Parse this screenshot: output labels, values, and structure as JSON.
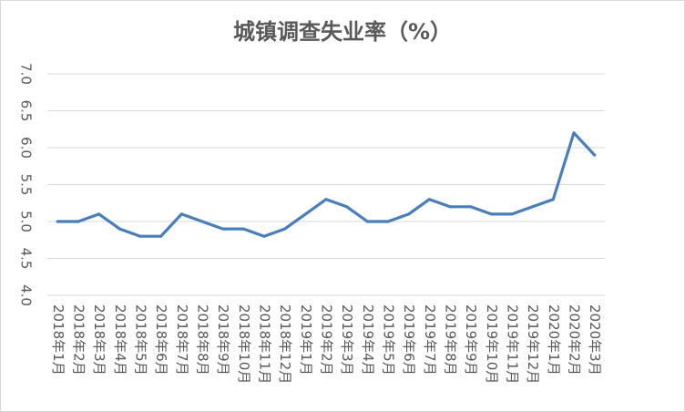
{
  "chart_data": {
    "type": "line",
    "title": "城镇调查失业率（%）",
    "xlabel": "",
    "ylabel": "",
    "ylim": [
      4.0,
      7.0
    ],
    "yticks": [
      "4.0",
      "4.5",
      "5.0",
      "5.5",
      "6.0",
      "6.5",
      "7.0"
    ],
    "grid": true,
    "legend": "none",
    "color": "#4a7ebb",
    "categories": [
      "2018年1月",
      "2018年2月",
      "2018年3月",
      "2018年4月",
      "2018年5月",
      "2018年6月",
      "2018年7月",
      "2018年8月",
      "2018年9月",
      "2018年10月",
      "2018年11月",
      "2018年12月",
      "2019年1月",
      "2019年2月",
      "2019年3月",
      "2019年4月",
      "2019年5月",
      "2019年6月",
      "2019年7月",
      "2019年8月",
      "2019年9月",
      "2019年10月",
      "2019年11月",
      "2019年12月",
      "2020年1月",
      "2020年2月",
      "2020年3月"
    ],
    "values": [
      5.0,
      5.0,
      5.1,
      4.9,
      4.8,
      4.8,
      5.1,
      5.0,
      4.9,
      4.9,
      4.8,
      4.9,
      5.1,
      5.3,
      5.2,
      5.0,
      5.0,
      5.1,
      5.3,
      5.2,
      5.2,
      5.1,
      5.1,
      5.2,
      5.3,
      6.2,
      5.9
    ]
  }
}
